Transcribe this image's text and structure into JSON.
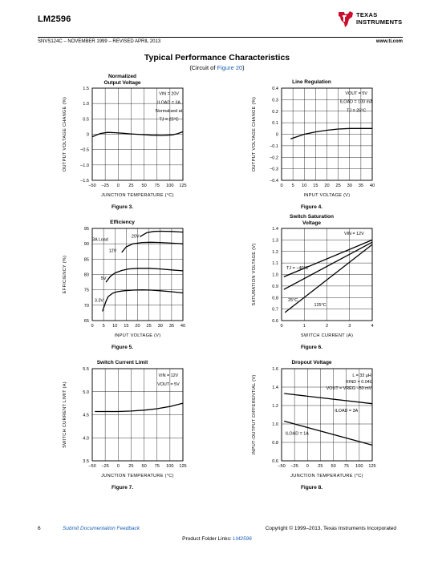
{
  "header": {
    "part_number": "LM2596",
    "logo_line1": "TEXAS",
    "logo_line2": "INSTRUMENTS",
    "doc_id": "SNVS124C – NOVEMBER 1999 – REVISED APRIL 2013",
    "site": "www.ti.com"
  },
  "section": {
    "title": "Typical Performance Characteristics",
    "sub_prefix": "(Circuit of ",
    "sub_link": "Figure 20",
    "sub_suffix": ")"
  },
  "footer": {
    "page": "6",
    "feedback": "Submit Documentation Feedback",
    "copyright": "Copyright © 1999–2013, Texas Instruments Incorporated",
    "links_prefix": "Product Folder Links: ",
    "links_part": "LM2596"
  },
  "chart_data": [
    {
      "type": "line",
      "title": "Normalized\nOutput Voltage",
      "caption": "Figure 3.",
      "xlabel": "JUNCTION TEMPERATURE (°C)",
      "ylabel": "OUTPUT VOLTAGE CHANGE (%)",
      "xlim": [
        -50,
        125
      ],
      "ylim": [
        -1.5,
        1.5
      ],
      "xticks": [
        -50,
        -25,
        0,
        25,
        50,
        75,
        100,
        125
      ],
      "xtick_labels": [
        "−50",
        "−25",
        "0",
        "25",
        "50",
        "75",
        "100",
        "125"
      ],
      "yticks": [
        -1.5,
        -1.0,
        -0.5,
        0,
        0.5,
        1.0,
        1.5
      ],
      "ytick_labels": [
        "−1.5",
        "−1.0",
        "−0.5",
        "0",
        "0.5",
        "1.0",
        "1.5"
      ],
      "grid": true,
      "annotations": [
        {
          "text": "VIN = 20V",
          "x": 98,
          "y": 1.33,
          "anchor": "middle"
        },
        {
          "text": "ILOAD = 3A",
          "x": 98,
          "y": 1.05,
          "anchor": "middle"
        },
        {
          "text": "Normalized at",
          "x": 98,
          "y": 0.77,
          "anchor": "middle"
        },
        {
          "text": "TJ = 25°C",
          "x": 98,
          "y": 0.49,
          "anchor": "middle"
        }
      ],
      "series": [
        {
          "x": [
            -50,
            -35,
            -20,
            -5,
            10,
            25,
            45,
            65,
            85,
            105,
            115,
            125
          ],
          "y": [
            -0.08,
            0.02,
            0.06,
            0.05,
            0.03,
            0.01,
            -0.01,
            -0.03,
            -0.04,
            -0.02,
            0.02,
            0.08
          ]
        }
      ]
    },
    {
      "type": "line",
      "title": "Line Regulation",
      "caption": "Figure 4.",
      "xlabel": "INPUT VOLTAGE (V)",
      "ylabel": "OUTPUT VOLTAGE CHANGE (%)",
      "xlim": [
        0,
        40
      ],
      "ylim": [
        -0.4,
        0.4
      ],
      "xticks": [
        0,
        5,
        10,
        15,
        20,
        25,
        30,
        35,
        40
      ],
      "xtick_labels": [
        "0",
        "5",
        "10",
        "15",
        "20",
        "25",
        "30",
        "35",
        "40"
      ],
      "yticks": [
        -0.4,
        -0.3,
        -0.2,
        -0.1,
        0,
        0.1,
        0.2,
        0.3,
        0.4
      ],
      "ytick_labels": [
        "−0.4",
        "−0.3",
        "−0.2",
        "−0.1",
        "0",
        "0.1",
        "0.2",
        "0.3",
        "0.4"
      ],
      "grid": true,
      "annotations": [
        {
          "text": "VOUT = 5V",
          "x": 33,
          "y": 0.36,
          "anchor": "middle"
        },
        {
          "text": "ILOAD = 100 mA",
          "x": 33,
          "y": 0.285,
          "anchor": "middle"
        },
        {
          "text": "TJ = 25°C",
          "x": 33,
          "y": 0.21,
          "anchor": "middle"
        }
      ],
      "series": [
        {
          "x": [
            4,
            7,
            10,
            15,
            20,
            25,
            30,
            35,
            40
          ],
          "y": [
            -0.04,
            -0.02,
            0.0,
            0.02,
            0.035,
            0.045,
            0.05,
            0.05,
            0.05
          ]
        }
      ]
    },
    {
      "type": "line",
      "title": "Efficiency",
      "caption": "Figure 5.",
      "xlabel": "INPUT VOLTAGE (V)",
      "ylabel": "EFFICIENCY (%)",
      "xlim": [
        0,
        40
      ],
      "ylim": [
        65,
        95
      ],
      "xticks": [
        0,
        5,
        10,
        15,
        20,
        25,
        30,
        35,
        40
      ],
      "xtick_labels": [
        "0",
        "5",
        "10",
        "15",
        "20",
        "25",
        "30",
        "35",
        "40"
      ],
      "yticks": [
        65,
        70,
        75,
        80,
        85,
        90,
        95
      ],
      "ytick_labels": [
        "65",
        "70",
        "75",
        "80",
        "85",
        "90",
        "95"
      ],
      "grid": true,
      "annotations": [
        {
          "text": "3A Load",
          "x": 3.5,
          "y": 91.5,
          "anchor": "middle"
        },
        {
          "text": "20V",
          "x": 19,
          "y": 92.5,
          "anchor": "middle"
        },
        {
          "text": "12V",
          "x": 9,
          "y": 87.8,
          "anchor": "middle"
        },
        {
          "text": "5V",
          "x": 5,
          "y": 78.8,
          "anchor": "middle"
        },
        {
          "text": "3.3V",
          "x": 3,
          "y": 71.6,
          "anchor": "middle"
        }
      ],
      "series": [
        {
          "name": "20V",
          "x": [
            21,
            24,
            27,
            30,
            35,
            40
          ],
          "y": [
            92.3,
            93.6,
            94.0,
            94.1,
            94.0,
            93.8
          ]
        },
        {
          "name": "12V",
          "x": [
            13,
            15,
            18,
            22,
            26,
            30,
            35,
            40
          ],
          "y": [
            87.2,
            89.0,
            90.0,
            90.4,
            90.5,
            90.4,
            90.2,
            90.0
          ]
        },
        {
          "name": "5V",
          "x": [
            6,
            8,
            10,
            13,
            16,
            20,
            25,
            30,
            35,
            40
          ],
          "y": [
            77.5,
            79.4,
            80.5,
            81.3,
            81.8,
            82.0,
            82.0,
            81.8,
            81.5,
            81.2
          ]
        },
        {
          "name": "3.3V",
          "x": [
            4.5,
            6,
            7,
            9,
            11,
            14,
            18,
            22,
            26,
            30,
            35,
            40
          ],
          "y": [
            68.0,
            71.2,
            72.8,
            73.9,
            74.4,
            74.7,
            74.9,
            75.0,
            74.9,
            74.7,
            74.4,
            74.0
          ]
        }
      ]
    },
    {
      "type": "line",
      "title": "Switch Saturation\nVoltage",
      "caption": "Figure 6.",
      "xlabel": "SWITCH CURRENT (A)",
      "ylabel": "SATURATION VOLTAGE (V)",
      "xlim": [
        0,
        4
      ],
      "ylim": [
        0.6,
        1.4
      ],
      "xticks": [
        0,
        1,
        2,
        3,
        4
      ],
      "xtick_labels": [
        "0",
        "1",
        "2",
        "3",
        "4"
      ],
      "yticks": [
        0.6,
        0.7,
        0.8,
        0.9,
        1.0,
        1.1,
        1.2,
        1.3,
        1.4
      ],
      "ytick_labels": [
        "0.6",
        "0.7",
        "0.8",
        "0.9",
        "1.0",
        "1.1",
        "1.2",
        "1.3",
        "1.4"
      ],
      "grid": true,
      "annotations": [
        {
          "text": "VIN = 12V",
          "x": 3.2,
          "y": 1.36,
          "anchor": "middle"
        },
        {
          "text": "TJ = −40°C",
          "x": 0.7,
          "y": 1.06,
          "anchor": "middle"
        },
        {
          "text": "25°C",
          "x": 0.5,
          "y": 0.78,
          "anchor": "middle"
        },
        {
          "text": "125°C",
          "x": 1.7,
          "y": 0.74,
          "anchor": "middle"
        }
      ],
      "series": [
        {
          "name": "TJ = −40°C",
          "x": [
            0.1,
            4
          ],
          "y": [
            0.98,
            1.3
          ]
        },
        {
          "name": "25°C",
          "x": [
            0.1,
            4
          ],
          "y": [
            0.87,
            1.28
          ]
        },
        {
          "name": "125°C",
          "x": [
            0.15,
            4
          ],
          "y": [
            0.67,
            1.26
          ]
        }
      ]
    },
    {
      "type": "line",
      "title": "Switch Current Limit",
      "caption": "Figure 7.",
      "xlabel": "JUNCTION TEMPERATURE (°C)",
      "ylabel": "SWITCH CURRENT LIMIT (A)",
      "xlim": [
        -50,
        125
      ],
      "ylim": [
        3.5,
        5.5
      ],
      "xticks": [
        -50,
        -25,
        0,
        25,
        50,
        75,
        100,
        125
      ],
      "xtick_labels": [
        "−50",
        "−25",
        "0",
        "25",
        "50",
        "75",
        "100",
        "125"
      ],
      "yticks": [
        3.5,
        4.0,
        4.5,
        5.0,
        5.5
      ],
      "ytick_labels": [
        "3.5",
        "4.0",
        "4.5",
        "5.0",
        "5.5"
      ],
      "grid": true,
      "annotations": [
        {
          "text": "VIN = 12V",
          "x": 97,
          "y": 5.36,
          "anchor": "middle"
        },
        {
          "text": "VOUT = 5V",
          "x": 97,
          "y": 5.17,
          "anchor": "middle"
        }
      ],
      "series": [
        {
          "x": [
            -45,
            -25,
            0,
            25,
            50,
            75,
            100,
            125
          ],
          "y": [
            4.57,
            4.57,
            4.57,
            4.58,
            4.6,
            4.63,
            4.68,
            4.75
          ]
        }
      ]
    },
    {
      "type": "line",
      "title": "Dropout Voltage",
      "caption": "Figure 8.",
      "xlabel": "JUNCTION TEMPERATURE (°C)",
      "ylabel": "INPUT-OUTPUT DIFFERENTIAL (V)",
      "xlim": [
        -50,
        125
      ],
      "ylim": [
        0.6,
        1.6
      ],
      "xticks": [
        -50,
        -25,
        0,
        25,
        50,
        75,
        100,
        125
      ],
      "xtick_labels": [
        "−50",
        "−25",
        "0",
        "25",
        "50",
        "75",
        "100",
        "125"
      ],
      "yticks": [
        0.6,
        0.8,
        1.0,
        1.2,
        1.4,
        1.6
      ],
      "ytick_labels": [
        "0.6",
        "0.8",
        "1.0",
        "1.2",
        "1.4",
        "1.6"
      ],
      "grid": true,
      "annotations": [
        {
          "text": "L = 33 μH",
          "x": 105,
          "y": 1.53,
          "anchor": "middle"
        },
        {
          "text": "RIND = 0.04Ω",
          "x": 100,
          "y": 1.46,
          "anchor": "middle"
        },
        {
          "text": "VOUT = VREG −50 mV",
          "x": 80,
          "y": 1.39,
          "anchor": "middle"
        },
        {
          "text": "ILOAD = 3A",
          "x": 75,
          "y": 1.15,
          "anchor": "middle"
        },
        {
          "text": "ILOAD = 1A",
          "x": -20,
          "y": 0.9,
          "anchor": "middle"
        }
      ],
      "series": [
        {
          "name": "ILOAD = 3A",
          "x": [
            -45,
            125
          ],
          "y": [
            1.33,
            1.22
          ]
        },
        {
          "name": "ILOAD = 1A",
          "x": [
            -45,
            125
          ],
          "y": [
            1.03,
            0.77
          ]
        }
      ]
    }
  ]
}
